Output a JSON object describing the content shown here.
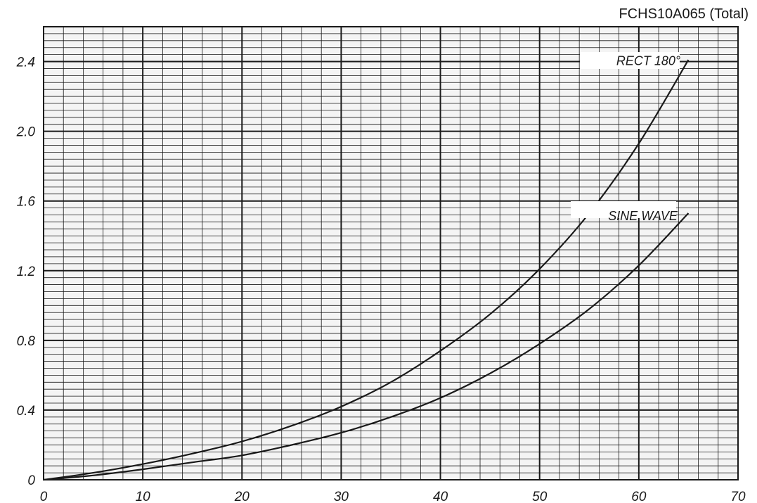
{
  "chart_data": {
    "type": "line",
    "title": "FCHS10A065 (Total)",
    "xlabel": "",
    "ylabel": "",
    "xlim": [
      0,
      70
    ],
    "ylim": [
      0,
      2.6
    ],
    "x_ticks": [
      "0",
      "10",
      "20",
      "30",
      "40",
      "50",
      "60",
      "70"
    ],
    "y_ticks": [
      "0",
      "0.4",
      "0.8",
      "1.2",
      "1.6",
      "2.0",
      "2.4"
    ],
    "grid": true,
    "series": [
      {
        "name": "RECT 180°",
        "x": [
          0,
          5,
          10,
          15,
          20,
          25,
          30,
          35,
          40,
          45,
          50,
          55,
          60,
          65
        ],
        "y": [
          0,
          0.04,
          0.09,
          0.15,
          0.22,
          0.31,
          0.42,
          0.56,
          0.74,
          0.95,
          1.21,
          1.53,
          1.93,
          2.41
        ]
      },
      {
        "name": "SINE WAVE",
        "x": [
          0,
          5,
          10,
          15,
          20,
          25,
          30,
          35,
          40,
          45,
          50,
          55,
          60,
          65
        ],
        "y": [
          0,
          0.025,
          0.06,
          0.1,
          0.14,
          0.2,
          0.27,
          0.36,
          0.47,
          0.61,
          0.78,
          0.98,
          1.23,
          1.53
        ]
      }
    ],
    "colors": {
      "grid": "#1a1a1a",
      "curve": "#1a1a1a",
      "paper": "#f4f4f4"
    }
  }
}
